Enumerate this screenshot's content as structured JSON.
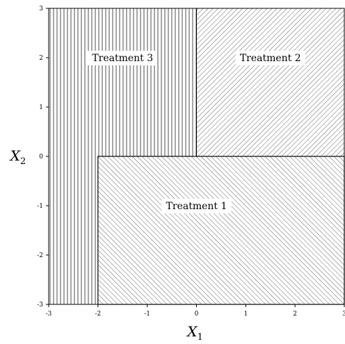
{
  "chart_data": {
    "type": "region-map",
    "xlim": [
      -3,
      3
    ],
    "ylim": [
      -3,
      3
    ],
    "x_ticks": [
      "-3",
      "-2",
      "-1",
      "0",
      "1",
      "2",
      "3"
    ],
    "y_ticks": [
      "-3",
      "-2",
      "-1",
      "0",
      "1",
      "2",
      "3"
    ],
    "xlabel": {
      "main": "X",
      "sub": "1"
    },
    "ylabel": {
      "main": "X",
      "sub": "2"
    },
    "regions": [
      {
        "label": "Treatment 3",
        "x": [
          -3,
          0
        ],
        "y": [
          0,
          3
        ],
        "pattern": "vertical",
        "extra_x": [
          -3,
          -2
        ],
        "extra_y": [
          -3,
          0
        ]
      },
      {
        "label": "Treatment 2",
        "x": [
          0,
          3
        ],
        "y": [
          0,
          3
        ],
        "pattern": "diagonal-up"
      },
      {
        "label": "Treatment 1",
        "x": [
          -2,
          3
        ],
        "y": [
          -3,
          0
        ],
        "pattern": "diagonal-down"
      }
    ]
  }
}
